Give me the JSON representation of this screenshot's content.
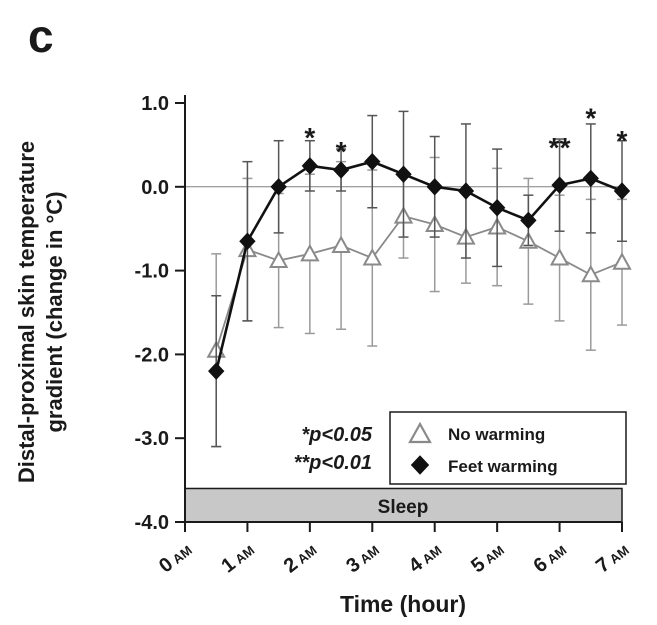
{
  "panel_label": "c",
  "colors": {
    "axis": "#1a1a1a",
    "zero_line": "#808080",
    "sleep_fill": "#c8c8c8",
    "background": "#ffffff"
  },
  "chart_data": {
    "type": "line",
    "title": "",
    "xlabel": "Time (hour)",
    "ylabel_line1": "Distal-proximal skin temperature",
    "ylabel_line2": "gradient (change in °C)",
    "xlim": [
      0,
      7
    ],
    "ylim": [
      -4.0,
      1.0
    ],
    "grid": false,
    "zero_line": 0.0,
    "x_ticks": [
      0,
      1,
      2,
      3,
      4,
      5,
      6,
      7
    ],
    "x_tick_labels": [
      "0 AM",
      "1 AM",
      "2 AM",
      "3 AM",
      "4 AM",
      "5 AM",
      "6 AM",
      "7 AM"
    ],
    "y_ticks": [
      1.0,
      0.0,
      -1.0,
      -2.0,
      -3.0,
      -4.0
    ],
    "y_tick_labels": [
      "1.0",
      "0.0",
      "-1.0",
      "-2.0",
      "-3.0",
      "-4.0"
    ],
    "x": [
      0.5,
      1.0,
      1.5,
      2.0,
      2.5,
      3.0,
      3.5,
      4.0,
      4.5,
      5.0,
      5.5,
      6.0,
      6.5,
      7.0
    ],
    "series": [
      {
        "name": "No warming",
        "marker": "triangle-open",
        "color": "#8a8a8a",
        "err_color": "#9a9a9a",
        "values": [
          -1.95,
          -0.75,
          -0.88,
          -0.8,
          -0.7,
          -0.85,
          -0.35,
          -0.45,
          -0.6,
          -0.48,
          -0.65,
          -0.85,
          -1.05,
          -0.9
        ],
        "errors": [
          1.15,
          0.85,
          0.8,
          0.95,
          1.0,
          1.05,
          0.5,
          0.8,
          0.55,
          0.7,
          0.75,
          0.75,
          0.9,
          0.75
        ]
      },
      {
        "name": "Feet warming",
        "marker": "diamond-filled",
        "color": "#111111",
        "err_color": "#555555",
        "values": [
          -2.2,
          -0.65,
          0.0,
          0.25,
          0.2,
          0.3,
          0.15,
          0.0,
          -0.05,
          -0.25,
          -0.4,
          0.02,
          0.1,
          -0.05
        ],
        "errors": [
          0.9,
          0.95,
          0.55,
          0.3,
          0.25,
          0.55,
          0.75,
          0.6,
          0.8,
          0.7,
          0.3,
          0.55,
          0.65,
          0.6
        ]
      }
    ],
    "significance": [
      {
        "x": 2.0,
        "y": 0.62,
        "label": "*"
      },
      {
        "x": 2.5,
        "y": 0.45,
        "label": "*"
      },
      {
        "x": 6.0,
        "y": 0.5,
        "label": "**"
      },
      {
        "x": 6.5,
        "y": 0.85,
        "label": "*"
      },
      {
        "x": 7.0,
        "y": 0.58,
        "label": "*"
      }
    ],
    "sleep_band": {
      "label": "Sleep",
      "from_y": -3.6,
      "to_y": -4.0
    },
    "legend": {
      "position": "bottom-right",
      "items": [
        {
          "label": "No warming",
          "marker": "triangle-open"
        },
        {
          "label": "Feet warming",
          "marker": "diamond-filled"
        }
      ]
    },
    "notes": [
      "*p<0.05",
      "**p<0.01"
    ]
  }
}
